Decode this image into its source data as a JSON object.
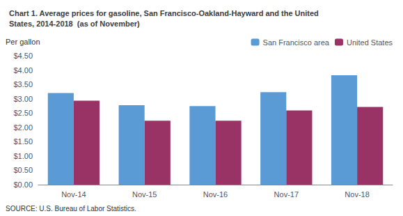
{
  "chart_data": {
    "type": "bar",
    "title": "Chart 1. Average prices for gasoline, San Francisco-Oakland-Hayward and the United\nStates, 2014-2018  (as of November)",
    "ylabel": "Per gallon",
    "annotations": [
      "SOURCE: U.S. Bureau of Labor Statistics."
    ],
    "categories": [
      "Nov-14",
      "Nov-15",
      "Nov-16",
      "Nov-17",
      "Nov-18"
    ],
    "series": [
      {
        "name": "San Francisco area",
        "color": "#5B9BD5",
        "values": [
          3.2,
          2.77,
          2.74,
          3.23,
          3.82
        ]
      },
      {
        "name": "United States",
        "color": "#993366",
        "values": [
          2.93,
          2.23,
          2.23,
          2.59,
          2.71
        ]
      }
    ],
    "ylim": [
      0,
      4.5
    ],
    "yticks": [
      {
        "value": 0.0,
        "label": "$0.00"
      },
      {
        "value": 0.5,
        "label": "$0.50"
      },
      {
        "value": 1.0,
        "label": "$1.00"
      },
      {
        "value": 1.5,
        "label": "$1.50"
      },
      {
        "value": 2.0,
        "label": "$2.00"
      },
      {
        "value": 2.5,
        "label": "$2.50"
      },
      {
        "value": 3.0,
        "label": "$3.00"
      },
      {
        "value": 3.5,
        "label": "$3.50"
      },
      {
        "value": 4.0,
        "label": "$4.00"
      },
      {
        "value": 4.5,
        "label": "$4.50"
      }
    ],
    "grid": false,
    "legend": "upper right"
  }
}
